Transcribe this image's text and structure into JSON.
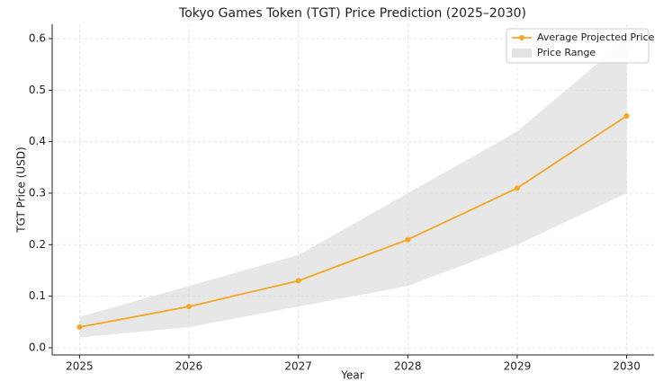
{
  "chart_data": {
    "type": "line",
    "title": "Tokyo Games Token (TGT) Price Prediction (2025–2030)",
    "xlabel": "Year",
    "ylabel": "TGT Price (USD)",
    "x": [
      2025,
      2026,
      2027,
      2028,
      2029,
      2030
    ],
    "series": [
      {
        "name": "Average Projected Price",
        "color": "#f5a623",
        "values": [
          0.04,
          0.08,
          0.13,
          0.21,
          0.31,
          0.45
        ]
      }
    ],
    "range": {
      "name": "Price Range",
      "color": "#e3e3e3",
      "low": [
        0.02,
        0.04,
        0.08,
        0.12,
        0.2,
        0.3
      ],
      "high": [
        0.06,
        0.12,
        0.18,
        0.3,
        0.42,
        0.6
      ]
    },
    "xlim": [
      2024.75,
      2030.25
    ],
    "xticks": [
      2025,
      2026,
      2027,
      2028,
      2029,
      2030
    ],
    "ylim": [
      -0.014,
      0.628
    ],
    "yticks": [
      {
        "value": 0,
        "label": "0.0"
      },
      0.1,
      0.2,
      0.3,
      0.4,
      0.5,
      0.6
    ],
    "grid": true,
    "legend": "upper right"
  }
}
